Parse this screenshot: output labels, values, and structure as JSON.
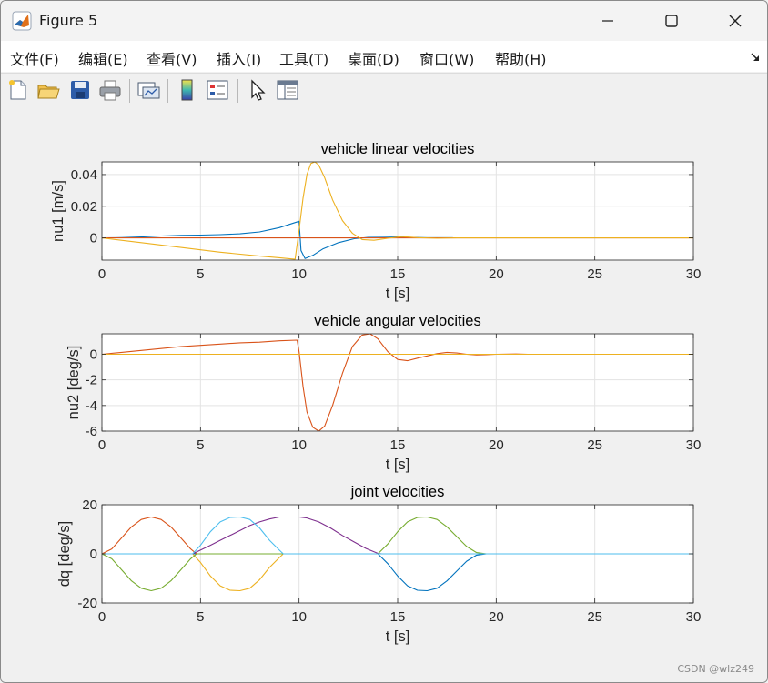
{
  "window": {
    "title": "Figure 5",
    "icon": "matlab-icon",
    "controls": [
      "minimize-icon",
      "maximize-icon",
      "close-icon"
    ]
  },
  "menu": [
    {
      "label": "文件(F)"
    },
    {
      "label": "编辑(E)"
    },
    {
      "label": "查看(V)"
    },
    {
      "label": "插入(I)"
    },
    {
      "label": "工具(T)"
    },
    {
      "label": "桌面(D)"
    },
    {
      "label": "窗口(W)"
    },
    {
      "label": "帮助(H)"
    }
  ],
  "toolbar": [
    {
      "icon": "new-figure-icon"
    },
    {
      "icon": "open-file-icon"
    },
    {
      "icon": "save-icon"
    },
    {
      "icon": "print-icon"
    },
    {
      "icon": "link-plot-icon"
    },
    {
      "icon": "colorbar-icon"
    },
    {
      "icon": "legend-icon"
    },
    {
      "icon": "pointer-icon"
    },
    {
      "icon": "property-inspector-icon"
    }
  ],
  "watermark": "CSDN @wlz249",
  "chart_data": [
    {
      "type": "line",
      "title": "vehicle linear velocities",
      "xlabel": "t [s]",
      "ylabel": "nu1 [m/s]",
      "xlim": [
        0,
        30
      ],
      "ylim": [
        -0.014,
        0.048
      ],
      "xticks": [
        0,
        5,
        10,
        15,
        20,
        25,
        30
      ],
      "yticks": [
        0,
        0.02,
        0.04
      ],
      "ytick_labels": [
        "0",
        "0.02",
        "0.04"
      ],
      "grid": true,
      "series": [
        {
          "color": "#0072bd",
          "x": [
            0,
            1,
            2,
            3,
            4,
            5,
            6,
            7,
            8,
            9,
            9.5,
            10,
            10.1,
            10.3,
            10.7,
            11.2,
            12,
            12.8,
            13.5,
            14.3,
            15,
            15.7,
            16.5,
            17.5,
            17.8
          ],
          "y": [
            0,
            0.0002,
            0.0006,
            0.0012,
            0.0016,
            0.0018,
            0.0021,
            0.0026,
            0.0038,
            0.0065,
            0.0085,
            0.0105,
            -0.008,
            -0.013,
            -0.011,
            -0.007,
            -0.003,
            -0.0005,
            0.0003,
            0.0004,
            0.0006,
            0.0003,
            0.0001,
            0.0001,
            0.0001
          ]
        },
        {
          "color": "#d95319",
          "x": [
            0,
            30
          ],
          "y": [
            0,
            0
          ]
        },
        {
          "color": "#edb120",
          "x": [
            0,
            2,
            4,
            6,
            8,
            9,
            9.8,
            10,
            10.2,
            10.4,
            10.6,
            10.8,
            11,
            11.3,
            11.7,
            12.2,
            12.7,
            13.2,
            13.8,
            14.5,
            15.2,
            16,
            17,
            18,
            30
          ],
          "y": [
            0,
            -0.003,
            -0.006,
            -0.009,
            -0.0115,
            -0.0125,
            -0.0135,
            0.005,
            0.025,
            0.04,
            0.047,
            0.048,
            0.046,
            0.038,
            0.024,
            0.011,
            0.003,
            -0.001,
            -0.0015,
            -0.0002,
            0.0008,
            0.0002,
            -0.0002,
            0,
            0
          ]
        }
      ]
    },
    {
      "type": "line",
      "title": "vehicle angular velocities",
      "xlabel": "t [s]",
      "ylabel": "nu2 [deg/s]",
      "xlim": [
        0,
        30
      ],
      "ylim": [
        -6,
        1.6
      ],
      "xticks": [
        0,
        5,
        10,
        15,
        20,
        25,
        30
      ],
      "yticks": [
        -6,
        -4,
        -2,
        0
      ],
      "ytick_labels": [
        "-6",
        "-4",
        "-2",
        "0"
      ],
      "grid": true,
      "series": [
        {
          "color": "#0072bd",
          "x": [
            0,
            30
          ],
          "y": [
            0,
            0
          ]
        },
        {
          "color": "#d95319",
          "x": [
            0,
            1,
            2,
            3,
            4,
            5,
            6,
            7,
            8,
            9,
            9.9,
            10,
            10.2,
            10.4,
            10.7,
            11,
            11.3,
            11.7,
            12.2,
            12.7,
            13.2,
            13.6,
            14,
            14.5,
            15,
            15.5,
            16,
            17,
            17.5,
            18,
            18.5,
            19,
            19.5,
            20,
            21,
            21.6
          ],
          "y": [
            0,
            0.15,
            0.3,
            0.45,
            0.6,
            0.7,
            0.8,
            0.9,
            0.95,
            1.05,
            1.1,
            0.2,
            -2.5,
            -4.5,
            -5.7,
            -6,
            -5.6,
            -4,
            -1.5,
            0.6,
            1.5,
            1.6,
            1.2,
            0.2,
            -0.4,
            -0.5,
            -0.3,
            0.05,
            0.15,
            0.1,
            0,
            -0.05,
            -0.03,
            0,
            0.02,
            0
          ]
        },
        {
          "color": "#edb120",
          "x": [
            0,
            30
          ],
          "y": [
            0,
            0
          ]
        }
      ]
    },
    {
      "type": "line",
      "title": "joint velocities",
      "xlabel": "t [s]",
      "ylabel": "dq [deg/s]",
      "xlim": [
        0,
        30
      ],
      "ylim": [
        -20,
        20
      ],
      "xticks": [
        0,
        5,
        10,
        15,
        20,
        25,
        30
      ],
      "yticks": [
        -20,
        0,
        20
      ],
      "ytick_labels": [
        "-20",
        "0",
        "20"
      ],
      "grid": true,
      "series": [
        {
          "color": "#0072bd",
          "x": [
            0,
            14,
            14.5,
            15,
            15.5,
            16,
            16.5,
            17,
            17.5,
            18,
            18.5,
            19,
            19.5,
            30
          ],
          "y": [
            0,
            0,
            -4,
            -9,
            -13,
            -14.8,
            -15,
            -14,
            -11,
            -7,
            -3,
            -0.5,
            0,
            0
          ]
        },
        {
          "color": "#d95319",
          "x": [
            0,
            0.5,
            1,
            1.5,
            2,
            2.5,
            3,
            3.5,
            4,
            4.5,
            4.8,
            30
          ],
          "y": [
            0,
            2,
            6.5,
            11,
            14,
            15,
            14,
            11,
            6.5,
            2,
            0,
            0
          ]
        },
        {
          "color": "#edb120",
          "x": [
            0,
            4.6,
            5,
            5.5,
            6,
            6.5,
            7,
            7.5,
            8,
            8.5,
            9,
            9.2,
            30
          ],
          "y": [
            0,
            0,
            -3.5,
            -9,
            -13,
            -14.8,
            -15,
            -14,
            -10.5,
            -5.5,
            -1.5,
            0,
            0
          ]
        },
        {
          "color": "#7e2f8e",
          "x": [
            0,
            4.6,
            5,
            5.5,
            6,
            6.5,
            7,
            7.5,
            8,
            8.5,
            9,
            9.3,
            9.6,
            10,
            10.4,
            11,
            11.6,
            12.2,
            12.8,
            13.4,
            14,
            14.2,
            30
          ],
          "y": [
            0,
            0,
            1.5,
            3.5,
            5.5,
            7.5,
            9.5,
            11.5,
            13,
            14.2,
            15,
            15,
            15,
            15,
            14.6,
            13,
            10.5,
            7.5,
            4.8,
            2.2,
            0.2,
            0,
            0
          ]
        },
        {
          "color": "#77ac30",
          "x": [
            0,
            0.5,
            1,
            1.5,
            2,
            2.5,
            3,
            3.5,
            4,
            4.5,
            4.8,
            14,
            14.5,
            15,
            15.5,
            16,
            16.5,
            17,
            17.5,
            18,
            18.5,
            19,
            19.5,
            30
          ],
          "y": [
            0,
            -2,
            -6.5,
            -11,
            -14,
            -15,
            -14,
            -11,
            -6.5,
            -2,
            0,
            0,
            4,
            9,
            13,
            14.8,
            15,
            14,
            11,
            7,
            3,
            0.5,
            0,
            0
          ]
        },
        {
          "color": "#4dbeee",
          "x": [
            0,
            4.6,
            5,
            5.5,
            6,
            6.5,
            7,
            7.5,
            8,
            8.5,
            9,
            9.2,
            30
          ],
          "y": [
            0,
            0,
            3.5,
            9,
            13,
            14.8,
            15,
            14,
            10.5,
            5.5,
            1.5,
            0,
            0
          ]
        }
      ]
    }
  ]
}
